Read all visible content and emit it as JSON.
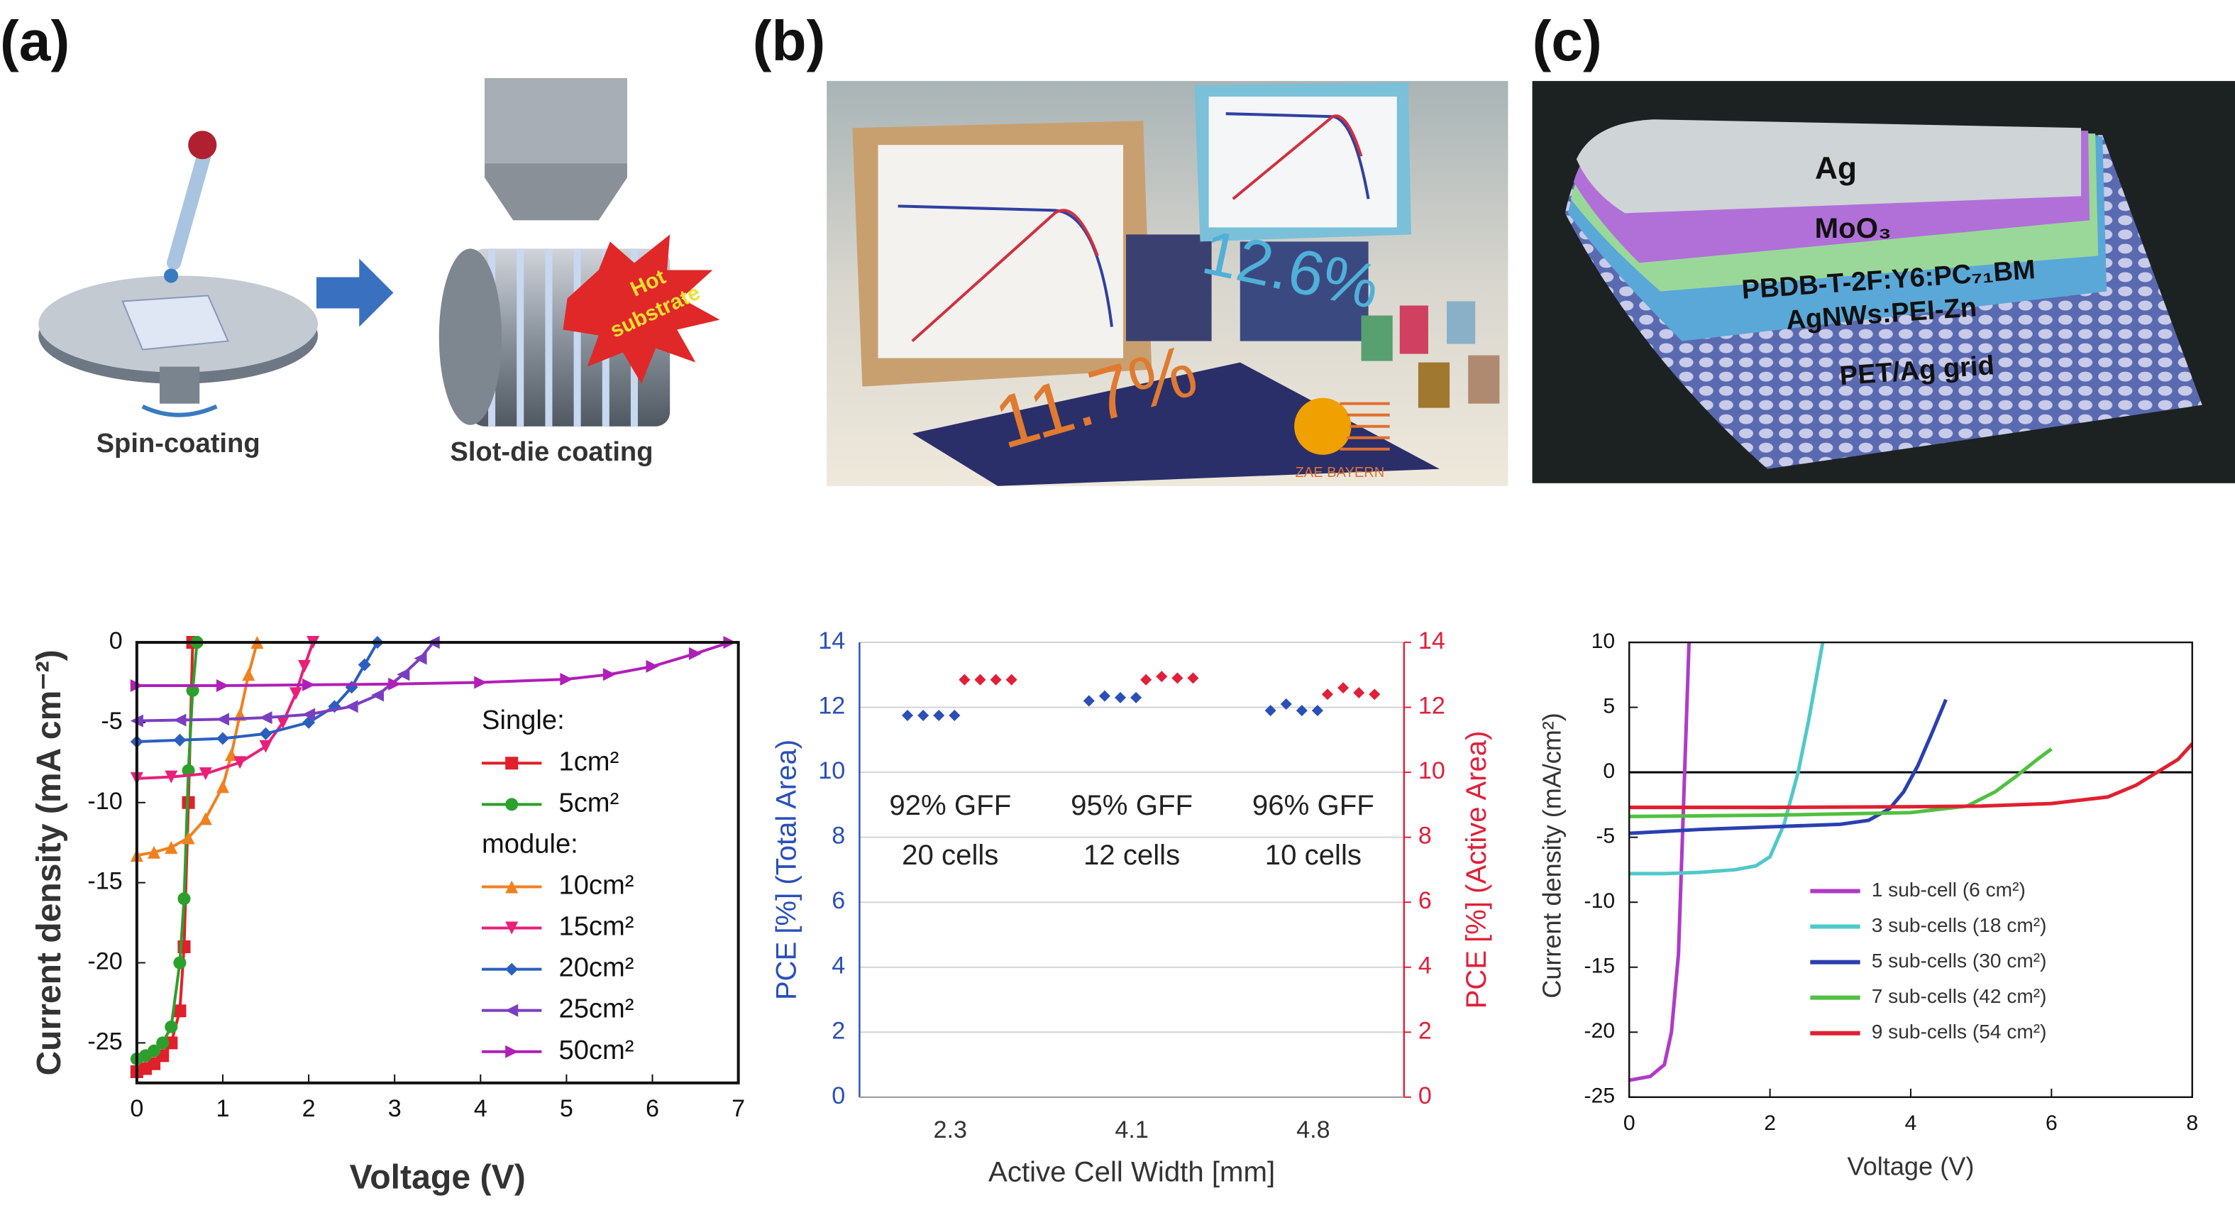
{
  "panels": {
    "a": {
      "label": "(a)",
      "spin": "Spin-coating",
      "slot": "Slot-die coating",
      "hot": [
        "Hot",
        "substrate"
      ]
    },
    "b": {
      "label": "(b)",
      "eff1": "11.7%",
      "eff2": "12.6%",
      "logo": "ZAE BAYERN"
    },
    "c": {
      "label": "(c)",
      "layers": [
        "Ag",
        "MoO₃",
        "PBDB-T-2F:Y6:PC₇₁BM",
        "AgNWs:PEI-Zn",
        "PET/Ag grid"
      ]
    }
  },
  "chart_data": [
    {
      "type": "line",
      "xlabel": "Voltage (V)",
      "ylabel": "Current density (mA cm⁻²)",
      "xlim": [
        0,
        7
      ],
      "ylim": [
        -27.5,
        0
      ],
      "xticks": [
        0,
        1,
        2,
        3,
        4,
        5,
        6,
        7
      ],
      "yticks": [
        -25,
        -20,
        -15,
        -10,
        -5,
        0
      ],
      "legend": "right",
      "series": [
        {
          "name": "1cm²",
          "group": "Single:",
          "color": "#e0202a",
          "marker": "square",
          "x": [
            0,
            0.1,
            0.2,
            0.3,
            0.4,
            0.5,
            0.55,
            0.6,
            0.65
          ],
          "values": [
            -26.8,
            -26.6,
            -26.3,
            -25.8,
            -25,
            -23,
            -19,
            -10,
            0
          ]
        },
        {
          "name": "5cm²",
          "group": "Single:",
          "color": "#2ca02c",
          "marker": "circle",
          "x": [
            0,
            0.1,
            0.2,
            0.3,
            0.4,
            0.5,
            0.55,
            0.6,
            0.65,
            0.7
          ],
          "values": [
            -26,
            -25.8,
            -25.5,
            -25,
            -24,
            -20,
            -16,
            -8,
            -3,
            0
          ]
        },
        {
          "name": "10cm²",
          "group": "module:",
          "color": "#f08020",
          "marker": "triangle",
          "x": [
            0,
            0.2,
            0.4,
            0.6,
            0.8,
            1.0,
            1.1,
            1.2,
            1.3,
            1.4
          ],
          "values": [
            -13.3,
            -13.1,
            -12.8,
            -12.2,
            -11,
            -9,
            -7,
            -4.5,
            -2,
            0
          ]
        },
        {
          "name": "15cm²",
          "group": "module:",
          "color": "#e8207a",
          "marker": "tri-down",
          "x": [
            0,
            0.4,
            0.8,
            1.2,
            1.5,
            1.7,
            1.85,
            1.95,
            2.05
          ],
          "values": [
            -8.5,
            -8.4,
            -8.2,
            -7.5,
            -6.5,
            -5,
            -3.2,
            -1.5,
            0
          ]
        },
        {
          "name": "20cm²",
          "group": "module:",
          "color": "#2b5fbf",
          "marker": "diamond",
          "x": [
            0,
            0.5,
            1,
            1.5,
            2,
            2.3,
            2.5,
            2.65,
            2.8
          ],
          "values": [
            -6.2,
            -6.1,
            -6,
            -5.7,
            -5,
            -4,
            -2.8,
            -1.4,
            0
          ]
        },
        {
          "name": "25cm²",
          "group": "module:",
          "color": "#7a3fc0",
          "marker": "tri-left",
          "x": [
            0,
            0.5,
            1,
            1.5,
            2,
            2.5,
            2.8,
            3.1,
            3.3,
            3.45
          ],
          "values": [
            -4.9,
            -4.85,
            -4.8,
            -4.7,
            -4.5,
            -4,
            -3.3,
            -2,
            -1,
            0
          ]
        },
        {
          "name": "50cm²",
          "group": "module:",
          "color": "#b01fb8",
          "marker": "tri-right",
          "x": [
            0,
            1,
            2,
            3,
            4,
            5,
            5.5,
            6,
            6.5,
            6.9
          ],
          "values": [
            -2.7,
            -2.7,
            -2.65,
            -2.6,
            -2.5,
            -2.3,
            -2.0,
            -1.5,
            -0.7,
            0
          ]
        }
      ]
    },
    {
      "type": "scatter",
      "xlabel": "Active Cell Width [mm]",
      "ylabel": "PCE [%] (Total Area)",
      "y2label": "PCE [%] (Active Area)",
      "categories": [
        "2.3",
        "4.1",
        "4.8"
      ],
      "ylim": [
        0,
        14
      ],
      "yticks": [
        0,
        2,
        4,
        6,
        8,
        10,
        12,
        14
      ],
      "y2lim": [
        0,
        14
      ],
      "y2ticks": [
        0,
        2,
        4,
        6,
        8,
        10,
        12,
        14
      ],
      "grid": true,
      "annotations": [
        [
          "92% GFF",
          "20 cells"
        ],
        [
          "95% GFF",
          "12 cells"
        ],
        [
          "96% GFF",
          "10 cells"
        ]
      ],
      "series": [
        {
          "color": "#2a4fb8",
          "values": [
            [
              11.75,
              11.75,
              11.75,
              11.75
            ],
            [
              12.2,
              12.35,
              12.3,
              12.3
            ],
            [
              11.9,
              12.1,
              11.9,
              11.9
            ]
          ]
        },
        {
          "color": "#e0203a",
          "axis": "y2",
          "values": [
            [
              12.85,
              12.85,
              12.85,
              12.85
            ],
            [
              12.85,
              12.95,
              12.9,
              12.9
            ],
            [
              12.4,
              12.6,
              12.45,
              12.4
            ]
          ]
        }
      ]
    },
    {
      "type": "line",
      "xlabel": "Voltage (V)",
      "ylabel": "Current density (mA/cm²)",
      "xlim": [
        0,
        8
      ],
      "ylim": [
        -25,
        10
      ],
      "xticks": [
        0,
        2,
        4,
        6,
        8
      ],
      "yticks": [
        -25,
        -20,
        -15,
        -10,
        -5,
        0,
        5,
        10
      ],
      "legend": "lower right",
      "zero_line": true,
      "series": [
        {
          "name": "1 sub-cell (6 cm²)",
          "color": "#b03ac8",
          "x": [
            0,
            0.3,
            0.5,
            0.6,
            0.7,
            0.75,
            0.8,
            0.85
          ],
          "values": [
            -23.7,
            -23.4,
            -22.5,
            -20,
            -14,
            -6,
            2,
            10
          ]
        },
        {
          "name": "3 sub-cells (18 cm²)",
          "color": "#50c8c8",
          "x": [
            0,
            0.5,
            1,
            1.5,
            1.8,
            2.0,
            2.2,
            2.4,
            2.55,
            2.75
          ],
          "values": [
            -7.8,
            -7.8,
            -7.7,
            -7.5,
            -7.2,
            -6.5,
            -4,
            0,
            4,
            10
          ]
        },
        {
          "name": "5 sub-cells (30 cm²)",
          "color": "#2a3fb0",
          "x": [
            0,
            1,
            2,
            3,
            3.4,
            3.7,
            3.9,
            4.1,
            4.3,
            4.5
          ],
          "values": [
            -4.7,
            -4.4,
            -4.2,
            -4,
            -3.7,
            -2.8,
            -1.5,
            0.5,
            3,
            5.6
          ]
        },
        {
          "name": "7 sub-cells (42 cm²)",
          "color": "#50c040",
          "x": [
            0,
            1,
            2,
            3,
            4,
            4.8,
            5.2,
            5.5,
            5.8,
            6
          ],
          "values": [
            -3.4,
            -3.35,
            -3.3,
            -3.2,
            -3.1,
            -2.6,
            -1.5,
            -0.3,
            1,
            1.8
          ]
        },
        {
          "name": "9 sub-cells (54 cm²)",
          "color": "#e02030",
          "x": [
            0,
            2,
            4,
            5,
            6,
            6.8,
            7.2,
            7.5,
            7.8,
            8
          ],
          "values": [
            -2.7,
            -2.7,
            -2.65,
            -2.6,
            -2.4,
            -1.9,
            -1,
            0,
            1,
            2.2
          ]
        }
      ]
    }
  ]
}
